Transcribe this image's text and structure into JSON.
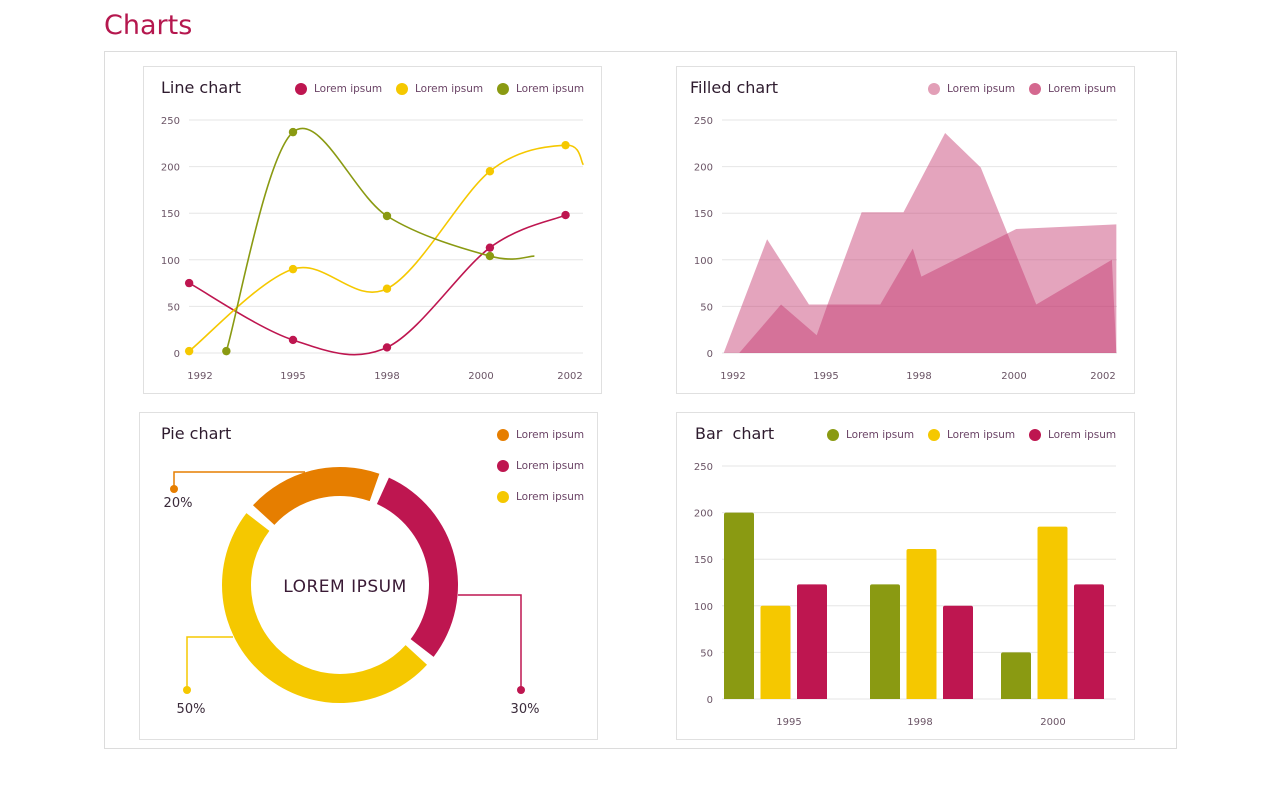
{
  "page": {
    "title": "Charts"
  },
  "colors": {
    "title": "#b5174e",
    "red": "#be1650",
    "yellow": "#f5c800",
    "green": "#8a9a12",
    "orange": "#e67e00",
    "pink_light": "#e29fb7",
    "pink_dark": "#d4688f"
  },
  "chart_data": [
    {
      "type": "line",
      "title": "Line chart",
      "x_ticks": [
        "1992",
        "1995",
        "1998",
        "2000",
        "2002"
      ],
      "y_ticks": [
        "0",
        "50",
        "100",
        "150",
        "200",
        "250"
      ],
      "ylim": [
        0,
        250
      ],
      "grid": true,
      "legend_placement": "top-right",
      "series": [
        {
          "name": "Lorem ipsum",
          "color": "#be1650",
          "points": [
            [
              1991.65,
              75
            ],
            [
              1995,
              14
            ],
            [
              1998,
              6
            ],
            [
              2000.2,
              113
            ],
            [
              2001.9,
              148
            ]
          ]
        },
        {
          "name": "Lorem ipsum",
          "color": "#f5c800",
          "points": [
            [
              1991.65,
              2
            ],
            [
              1995,
              90
            ],
            [
              1998,
              69
            ],
            [
              2000.2,
              195
            ],
            [
              2001.9,
              223
            ]
          ],
          "curve_end": [
            2002.3,
            202
          ]
        },
        {
          "name": "Lorem ipsum",
          "color": "#8a9a12",
          "points": [
            [
              1992.85,
              2
            ],
            [
              1995,
              237
            ],
            [
              1998,
              147
            ],
            [
              2000.2,
              104
            ]
          ],
          "curve_end": [
            2001.2,
            104
          ]
        }
      ]
    },
    {
      "type": "area",
      "title": "Filled chart",
      "x_ticks": [
        "1992",
        "1995",
        "1998",
        "2000",
        "2002"
      ],
      "y_ticks": [
        "0",
        "50",
        "100",
        "150",
        "200",
        "250"
      ],
      "ylim": [
        0,
        250
      ],
      "grid": true,
      "legend_placement": "top-right",
      "series": [
        {
          "name": "Lorem ipsum",
          "color": "#e29fb7",
          "points": [
            [
              1991.7,
              0
            ],
            [
              1993.1,
              122
            ],
            [
              1994.45,
              52
            ],
            [
              1995.05,
              52
            ],
            [
              1996.15,
              151
            ],
            [
              1997.5,
              151
            ],
            [
              1998.55,
              236
            ],
            [
              1999.3,
              199
            ],
            [
              2000.5,
              52
            ],
            [
              2002.2,
              100
            ],
            [
              2002.3,
              0
            ]
          ]
        },
        {
          "name": "Lorem ipsum",
          "color": "#d4688f",
          "points": [
            [
              1992.2,
              0
            ],
            [
              1993.55,
              52
            ],
            [
              1994.7,
              19
            ],
            [
              1995.05,
              52
            ],
            [
              1996.75,
              52
            ],
            [
              1997.8,
              112
            ],
            [
              1998.05,
              82
            ],
            [
              2000.05,
              133
            ],
            [
              2002.3,
              138
            ],
            [
              2002.3,
              0
            ]
          ]
        }
      ]
    },
    {
      "type": "pie",
      "title": "Pie chart",
      "center_label": "LOREM IPSUM",
      "legend_placement": "top-right",
      "slices": [
        {
          "name": "Lorem ipsum",
          "value": 20,
          "label": "20%",
          "color": "#e67e00"
        },
        {
          "name": "Lorem ipsum",
          "value": 30,
          "label": "30%",
          "color": "#be1650"
        },
        {
          "name": "Lorem ipsum",
          "value": 50,
          "label": "50%",
          "color": "#f5c800"
        }
      ]
    },
    {
      "type": "bar",
      "title": "Bar  chart",
      "categories": [
        "1995",
        "1998",
        "2000"
      ],
      "y_ticks": [
        "0",
        "50",
        "100",
        "150",
        "200",
        "250"
      ],
      "ylim": [
        0,
        250
      ],
      "grid": true,
      "legend_placement": "top-right",
      "series": [
        {
          "name": "Lorem ipsum",
          "color": "#8a9a12",
          "values": [
            200,
            123,
            50
          ]
        },
        {
          "name": "Lorem ipsum",
          "color": "#f5c800",
          "values": [
            100,
            161,
            185
          ]
        },
        {
          "name": "Lorem ipsum",
          "color": "#be1650",
          "values": [
            123,
            100,
            123
          ]
        }
      ]
    }
  ]
}
